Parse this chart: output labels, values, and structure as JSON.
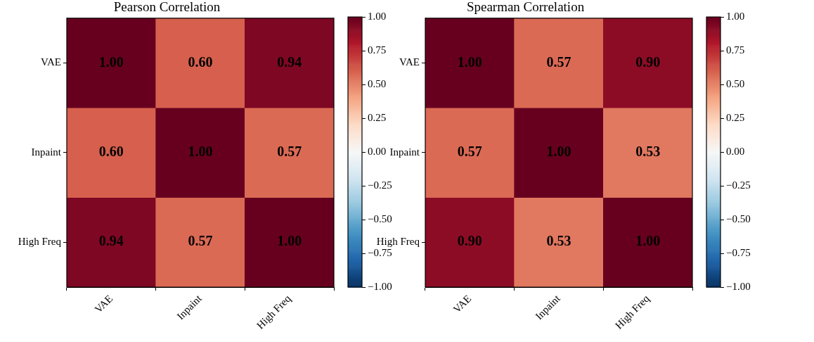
{
  "chart_data": [
    {
      "type": "heatmap",
      "title": "Pearson Correlation",
      "categories": [
        "VAE",
        "Inpaint",
        "High Freq"
      ],
      "y_categories": [
        "VAE",
        "Inpaint",
        "High Freq"
      ],
      "cells": [
        [
          1.0,
          0.6,
          0.94
        ],
        [
          0.6,
          1.0,
          0.57
        ],
        [
          0.94,
          0.57,
          1.0
        ]
      ],
      "cell_labels": [
        [
          "1.00",
          "0.60",
          "0.94"
        ],
        [
          "0.60",
          "1.00",
          "0.57"
        ],
        [
          "0.94",
          "0.57",
          "1.00"
        ]
      ],
      "clim": [
        -1,
        1
      ],
      "cticks": [
        {
          "value": -1,
          "label": "−1.00"
        },
        {
          "value": -0.75,
          "label": "−0.75"
        },
        {
          "value": -0.5,
          "label": "−0.50"
        },
        {
          "value": -0.25,
          "label": "−0.25"
        },
        {
          "value": 0,
          "label": "0.00"
        },
        {
          "value": 0.25,
          "label": "0.25"
        },
        {
          "value": 0.5,
          "label": "0.50"
        },
        {
          "value": 0.75,
          "label": "0.75"
        },
        {
          "value": 1,
          "label": "1.00"
        }
      ]
    },
    {
      "type": "heatmap",
      "title": "Spearman Correlation",
      "categories": [
        "VAE",
        "Inpaint",
        "High Freq"
      ],
      "y_categories": [
        "VAE",
        "Inpaint",
        "High Freq"
      ],
      "cells": [
        [
          1.0,
          0.57,
          0.9
        ],
        [
          0.57,
          1.0,
          0.53
        ],
        [
          0.9,
          0.53,
          1.0
        ]
      ],
      "cell_labels": [
        [
          "1.00",
          "0.57",
          "0.90"
        ],
        [
          "0.57",
          "1.00",
          "0.53"
        ],
        [
          "0.90",
          "0.53",
          "1.00"
        ]
      ],
      "clim": [
        -1,
        1
      ],
      "cticks": [
        {
          "value": -1,
          "label": "−1.00"
        },
        {
          "value": -0.75,
          "label": "−0.75"
        },
        {
          "value": -0.5,
          "label": "−0.50"
        },
        {
          "value": -0.25,
          "label": "−0.25"
        },
        {
          "value": 0,
          "label": "0.00"
        },
        {
          "value": 0.25,
          "label": "0.25"
        },
        {
          "value": 0.5,
          "label": "0.50"
        },
        {
          "value": 0.75,
          "label": "0.75"
        },
        {
          "value": 1,
          "label": "1.00"
        }
      ]
    }
  ]
}
